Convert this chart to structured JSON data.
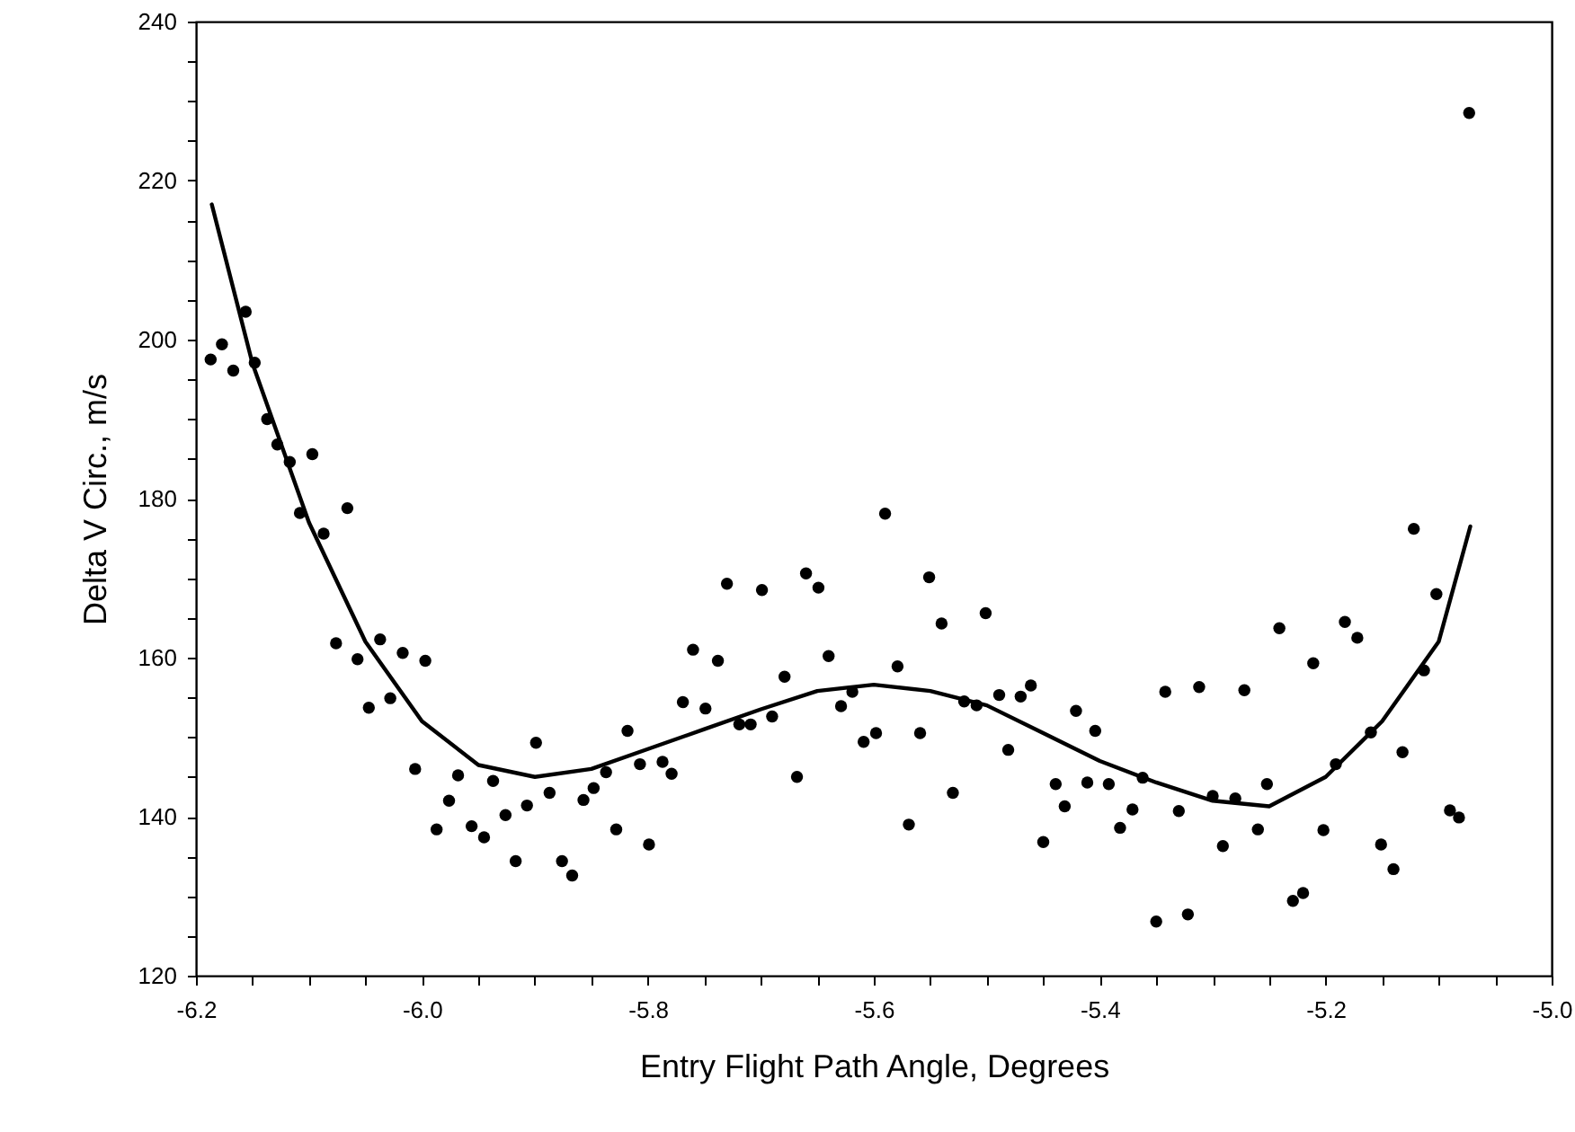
{
  "chart_data": {
    "type": "scatter",
    "xlabel": "Entry Flight Path Angle, Degrees",
    "ylabel": "Delta V Circ., m/s",
    "xlim": [
      -6.2,
      -5.0
    ],
    "ylim": [
      120,
      240
    ],
    "xticks": [
      -6.2,
      {
        "value": -6.15,
        "label": null
      },
      {
        "value": -6.1,
        "label": null
      },
      {
        "value": -6.05,
        "label": null
      },
      {
        "value": -6.0,
        "label": "-6.0"
      },
      {
        "value": -5.95,
        "label": null
      },
      {
        "value": -5.9,
        "label": null
      },
      {
        "value": -5.85,
        "label": null
      },
      -5.8,
      {
        "value": -5.75,
        "label": null
      },
      {
        "value": -5.7,
        "label": null
      },
      {
        "value": -5.65,
        "label": null
      },
      -5.6,
      {
        "value": -5.55,
        "label": null
      },
      {
        "value": -5.5,
        "label": null
      },
      {
        "value": -5.45,
        "label": null
      },
      -5.4,
      {
        "value": -5.35,
        "label": null
      },
      {
        "value": -5.3,
        "label": null
      },
      {
        "value": -5.25,
        "label": null
      },
      -5.2,
      {
        "value": -5.15,
        "label": null
      },
      {
        "value": -5.1,
        "label": null
      },
      {
        "value": -5.05,
        "label": null
      },
      {
        "value": -5.0,
        "label": "-5.0"
      }
    ],
    "yticks": [
      120,
      {
        "value": 125,
        "label": null
      },
      {
        "value": 130,
        "label": null
      },
      {
        "value": 135,
        "label": null
      },
      140,
      {
        "value": 145,
        "label": null
      },
      {
        "value": 150,
        "label": null
      },
      {
        "value": 155,
        "label": null
      },
      160,
      {
        "value": 165,
        "label": null
      },
      {
        "value": 170,
        "label": null
      },
      {
        "value": 175,
        "label": null
      },
      180,
      {
        "value": 185,
        "label": null
      },
      {
        "value": 190,
        "label": null
      },
      {
        "value": 195,
        "label": null
      },
      200,
      {
        "value": 205,
        "label": null
      },
      {
        "value": 210,
        "label": null
      },
      {
        "value": 215,
        "label": null
      },
      220,
      {
        "value": 225,
        "label": null
      },
      {
        "value": 230,
        "label": null
      },
      {
        "value": 235,
        "label": null
      },
      240
    ],
    "grid": false,
    "series": [
      {
        "type": "scatter",
        "marker": "circle",
        "color": "#000000",
        "x": [
          -6.187,
          -6.177,
          -6.167,
          -6.156,
          -6.148,
          -6.137,
          -6.128,
          -6.117,
          -6.108,
          -6.097,
          -6.087,
          -6.076,
          -6.066,
          -6.057,
          -6.047,
          -6.037,
          -6.028,
          -6.017,
          -6.006,
          -5.997,
          -5.987,
          -5.976,
          -5.968,
          -5.956,
          -5.945,
          -5.937,
          -5.926,
          -5.917,
          -5.907,
          -5.899,
          -5.887,
          -5.876,
          -5.867,
          -5.857,
          -5.848,
          -5.837,
          -5.828,
          -5.818,
          -5.807,
          -5.799,
          -5.787,
          -5.779,
          -5.769,
          -5.76,
          -5.749,
          -5.738,
          -5.73,
          -5.719,
          -5.709,
          -5.699,
          -5.69,
          -5.679,
          -5.668,
          -5.66,
          -5.649,
          -5.64,
          -5.629,
          -5.619,
          -5.609,
          -5.598,
          -5.59,
          -5.579,
          -5.569,
          -5.559,
          -5.551,
          -5.54,
          -5.53,
          -5.52,
          -5.509,
          -5.501,
          -5.489,
          -5.481,
          -5.47,
          -5.461,
          -5.45,
          -5.439,
          -5.431,
          -5.421,
          -5.411,
          -5.404,
          -5.392,
          -5.382,
          -5.371,
          -5.362,
          -5.35,
          -5.342,
          -5.33,
          -5.322,
          -5.312,
          -5.3,
          -5.291,
          -5.28,
          -5.272,
          -5.26,
          -5.252,
          -5.241,
          -5.229,
          -5.22,
          -5.211,
          -5.202,
          -5.191,
          -5.183,
          -5.172,
          -5.16,
          -5.151,
          -5.14,
          -5.132,
          -5.122,
          -5.113,
          -5.102,
          -5.09,
          -5.082,
          -5.073
        ],
        "values": [
          197.5,
          199.4,
          196.1,
          203.5,
          197.1,
          190.0,
          186.8,
          184.6,
          178.2,
          185.6,
          175.6,
          161.8,
          178.8,
          159.8,
          153.7,
          162.3,
          154.9,
          160.6,
          146.0,
          159.6,
          138.4,
          142.0,
          145.2,
          138.8,
          137.4,
          144.5,
          140.2,
          134.4,
          141.4,
          149.3,
          143.0,
          134.4,
          132.6,
          142.1,
          143.6,
          145.6,
          138.4,
          150.8,
          146.6,
          136.5,
          146.9,
          145.4,
          154.4,
          161.0,
          153.6,
          159.6,
          169.3,
          151.6,
          151.6,
          168.5,
          152.6,
          157.6,
          145.0,
          170.6,
          168.8,
          160.2,
          153.9,
          155.7,
          149.4,
          150.5,
          178.1,
          158.9,
          139.0,
          150.5,
          170.1,
          164.3,
          143.0,
          154.5,
          154.0,
          165.6,
          155.3,
          148.4,
          155.1,
          156.5,
          136.8,
          144.1,
          141.3,
          153.3,
          144.3,
          150.8,
          144.1,
          138.6,
          140.9,
          144.9,
          126.8,
          155.7,
          140.7,
          127.7,
          156.3,
          142.6,
          136.3,
          142.3,
          155.9,
          138.4,
          144.1,
          163.7,
          129.4,
          130.4,
          159.3,
          138.3,
          146.6,
          164.5,
          162.5,
          150.6,
          136.5,
          133.4,
          148.1,
          176.2,
          158.4,
          168.0,
          140.8,
          139.9,
          228.5
        ]
      },
      {
        "type": "line",
        "marker": "none",
        "line_style": "solid",
        "color": "#000000",
        "x": [
          -6.186,
          -6.15,
          -6.1,
          -6.05,
          -6.0,
          -5.95,
          -5.9,
          -5.85,
          -5.8,
          -5.75,
          -5.7,
          -5.65,
          -5.6,
          -5.55,
          -5.5,
          -5.45,
          -5.4,
          -5.35,
          -5.3,
          -5.25,
          -5.2,
          -5.15,
          -5.1,
          -5.072
        ],
        "values": [
          217,
          197,
          177,
          162,
          152,
          146.5,
          145,
          146,
          148.5,
          151,
          153.5,
          155.8,
          156.6,
          155.8,
          154,
          150.5,
          147,
          144.3,
          142,
          141.3,
          145,
          152,
          162,
          176.5
        ]
      }
    ]
  }
}
